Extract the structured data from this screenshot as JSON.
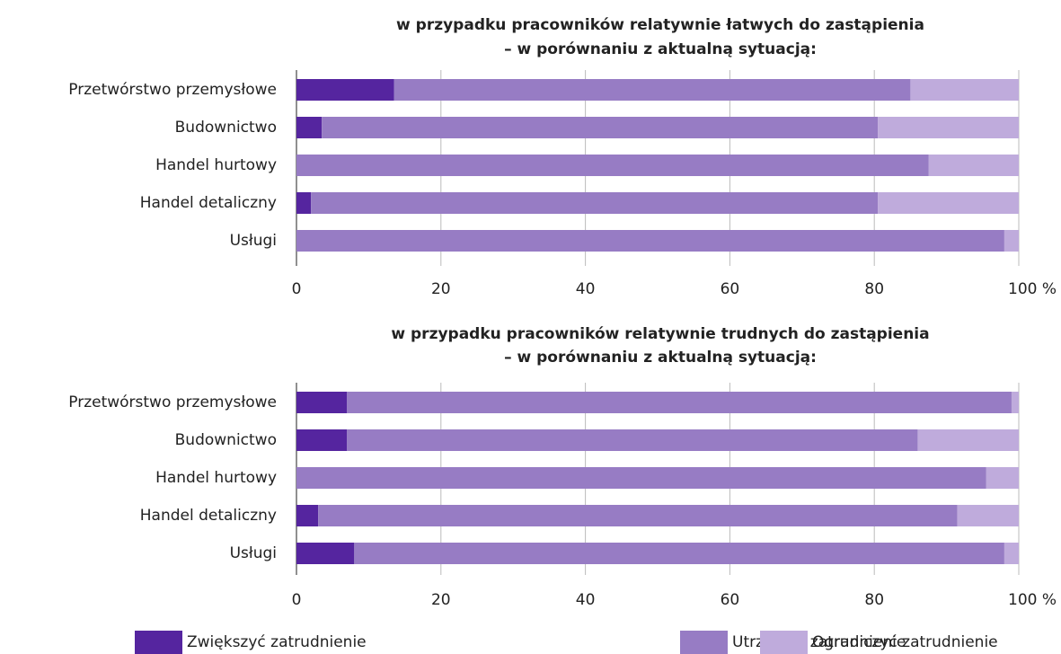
{
  "chart_data": [
    {
      "type": "stacked-bar-horizontal",
      "title": "w przypadku pracowników relatywnie łatwych do zastąpienia",
      "subtitle": "– w porównaniu z aktualną sytuacją:",
      "categories": [
        "Przetwórstwo przemysłowe",
        "Budownictwo",
        "Handel hurtowy",
        "Handel detaliczny",
        "Usługi"
      ],
      "series": [
        {
          "name": "Zwiększyć zatrudnienie",
          "color": "#55259f",
          "values": [
            13.5,
            3.5,
            0,
            2,
            0
          ]
        },
        {
          "name": "Utrzymać zatrudnienie",
          "color": "#977cc4",
          "values": [
            71.5,
            77,
            87.5,
            78.5,
            98
          ]
        },
        {
          "name": "Ograniczyć zatrudnienie",
          "color": "#bfabdc",
          "values": [
            15,
            19.5,
            12.5,
            19.5,
            2
          ]
        }
      ],
      "xlim": [
        0,
        100
      ],
      "xticks": [
        0,
        20,
        40,
        60,
        80,
        {
          "value": 100,
          "label": "100 %"
        }
      ],
      "grid": true
    },
    {
      "type": "stacked-bar-horizontal",
      "title": "w przypadku pracowników relatywnie trudnych do zastąpienia",
      "subtitle": "– w porównaniu z aktualną sytuacją:",
      "categories": [
        "Przetwórstwo przemysłowe",
        "Budownictwo",
        "Handel hurtowy",
        "Handel detaliczny",
        "Usługi"
      ],
      "series": [
        {
          "color": "#55259f",
          "values": [
            7,
            7,
            0,
            3,
            8
          ]
        },
        {
          "color": "#977cc4",
          "values": [
            92,
            79,
            95.5,
            88.5,
            90
          ]
        },
        {
          "color": "#bfabdc",
          "values": [
            1,
            14,
            4.5,
            8.5,
            2
          ]
        }
      ],
      "xlim": [
        0,
        100
      ],
      "xticks": [
        0,
        20,
        40,
        60,
        80,
        {
          "value": 100,
          "label": "100 %"
        }
      ],
      "grid": true
    }
  ]
}
